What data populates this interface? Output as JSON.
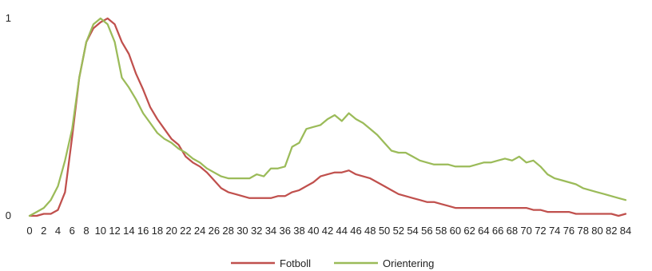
{
  "chart_data": {
    "type": "line",
    "x": [
      0,
      1,
      2,
      3,
      4,
      5,
      6,
      7,
      8,
      9,
      10,
      11,
      12,
      13,
      14,
      15,
      16,
      17,
      18,
      19,
      20,
      21,
      22,
      23,
      24,
      25,
      26,
      27,
      28,
      29,
      30,
      31,
      32,
      33,
      34,
      35,
      36,
      37,
      38,
      39,
      40,
      41,
      42,
      43,
      44,
      45,
      46,
      47,
      48,
      49,
      50,
      51,
      52,
      53,
      54,
      55,
      56,
      57,
      58,
      59,
      60,
      61,
      62,
      63,
      64,
      65,
      66,
      67,
      68,
      69,
      70,
      71,
      72,
      73,
      74,
      75,
      76,
      77,
      78,
      79,
      80,
      81,
      82,
      83,
      84
    ],
    "xticks": [
      0,
      2,
      4,
      6,
      8,
      10,
      12,
      14,
      16,
      18,
      20,
      22,
      24,
      26,
      28,
      30,
      32,
      34,
      36,
      38,
      40,
      42,
      44,
      46,
      48,
      50,
      52,
      54,
      56,
      58,
      60,
      62,
      64,
      66,
      68,
      70,
      72,
      74,
      76,
      78,
      80,
      82,
      84
    ],
    "ylim": [
      0,
      1
    ],
    "yticks": [
      0,
      1
    ],
    "colors": {
      "Fotboll": "#c0504d",
      "Orientering": "#9bbb59"
    },
    "legend_position": "bottom",
    "series": [
      {
        "name": "Fotboll",
        "values": [
          0.0,
          0.0,
          0.01,
          0.01,
          0.03,
          0.12,
          0.4,
          0.7,
          0.88,
          0.95,
          0.98,
          1.0,
          0.97,
          0.88,
          0.82,
          0.72,
          0.64,
          0.55,
          0.49,
          0.44,
          0.39,
          0.36,
          0.3,
          0.27,
          0.25,
          0.22,
          0.18,
          0.14,
          0.12,
          0.11,
          0.1,
          0.09,
          0.09,
          0.09,
          0.09,
          0.1,
          0.1,
          0.12,
          0.13,
          0.15,
          0.17,
          0.2,
          0.21,
          0.22,
          0.22,
          0.23,
          0.21,
          0.2,
          0.19,
          0.17,
          0.15,
          0.13,
          0.11,
          0.1,
          0.09,
          0.08,
          0.07,
          0.07,
          0.06,
          0.05,
          0.04,
          0.04,
          0.04,
          0.04,
          0.04,
          0.04,
          0.04,
          0.04,
          0.04,
          0.04,
          0.04,
          0.03,
          0.03,
          0.02,
          0.02,
          0.02,
          0.02,
          0.01,
          0.01,
          0.01,
          0.01,
          0.01,
          0.01,
          0.0,
          0.01
        ]
      },
      {
        "name": "Orientering",
        "values": [
          0.0,
          0.02,
          0.04,
          0.08,
          0.15,
          0.28,
          0.44,
          0.7,
          0.88,
          0.97,
          1.0,
          0.97,
          0.88,
          0.7,
          0.65,
          0.59,
          0.52,
          0.47,
          0.42,
          0.39,
          0.37,
          0.34,
          0.32,
          0.29,
          0.27,
          0.24,
          0.22,
          0.2,
          0.19,
          0.19,
          0.19,
          0.19,
          0.21,
          0.2,
          0.24,
          0.24,
          0.25,
          0.35,
          0.37,
          0.44,
          0.45,
          0.46,
          0.49,
          0.51,
          0.48,
          0.52,
          0.49,
          0.47,
          0.44,
          0.41,
          0.37,
          0.33,
          0.32,
          0.32,
          0.3,
          0.28,
          0.27,
          0.26,
          0.26,
          0.26,
          0.25,
          0.25,
          0.25,
          0.26,
          0.27,
          0.27,
          0.28,
          0.29,
          0.28,
          0.3,
          0.27,
          0.28,
          0.25,
          0.21,
          0.19,
          0.18,
          0.17,
          0.16,
          0.14,
          0.13,
          0.12,
          0.11,
          0.1,
          0.09,
          0.08
        ]
      }
    ]
  }
}
